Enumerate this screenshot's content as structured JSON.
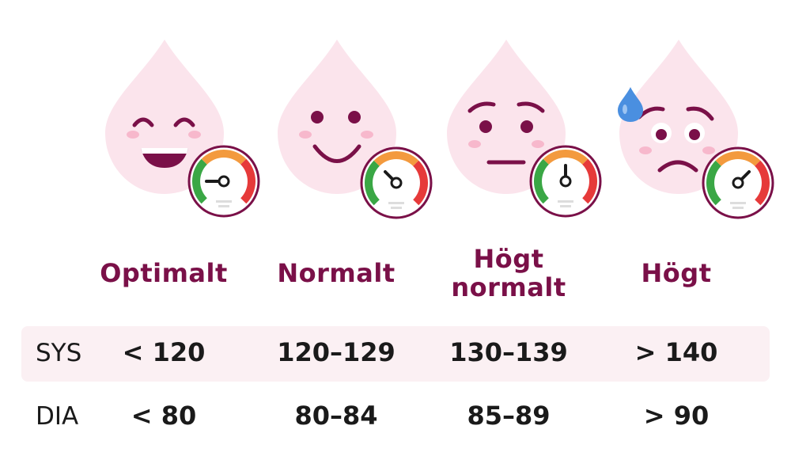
{
  "categories": [
    {
      "label": "Optimalt",
      "sys": "< 120",
      "dia": "< 80",
      "face": "laughing",
      "gauge_level": 0.1,
      "sweat": false
    },
    {
      "label": "Normalt",
      "sys": "120–129",
      "dia": "80–84",
      "face": "smiling",
      "gauge_level": 0.35,
      "sweat": false
    },
    {
      "label": "Högt normalt",
      "sys": "130–139",
      "dia": "85–89",
      "face": "worried",
      "gauge_level": 0.5,
      "sweat": false
    },
    {
      "label": "Högt",
      "sys": "> 140",
      "dia": "> 90",
      "face": "sad-sweating",
      "gauge_level": 0.7,
      "sweat": true
    }
  ],
  "rows": {
    "sys_label": "SYS",
    "dia_label": "DIA"
  },
  "colors": {
    "accent": "#7a1048",
    "drop": "#fbe4ec",
    "cheek": "#f7b8cc",
    "sweat": "#4a8fe0",
    "gauge_green": "#3aa745",
    "gauge_orange": "#f39a3e",
    "gauge_red": "#e63a3a",
    "sys_band": "#fbf0f3"
  },
  "icons": [
    "blood-drop-face-icon",
    "pressure-gauge-icon",
    "sweat-drop-icon"
  ]
}
